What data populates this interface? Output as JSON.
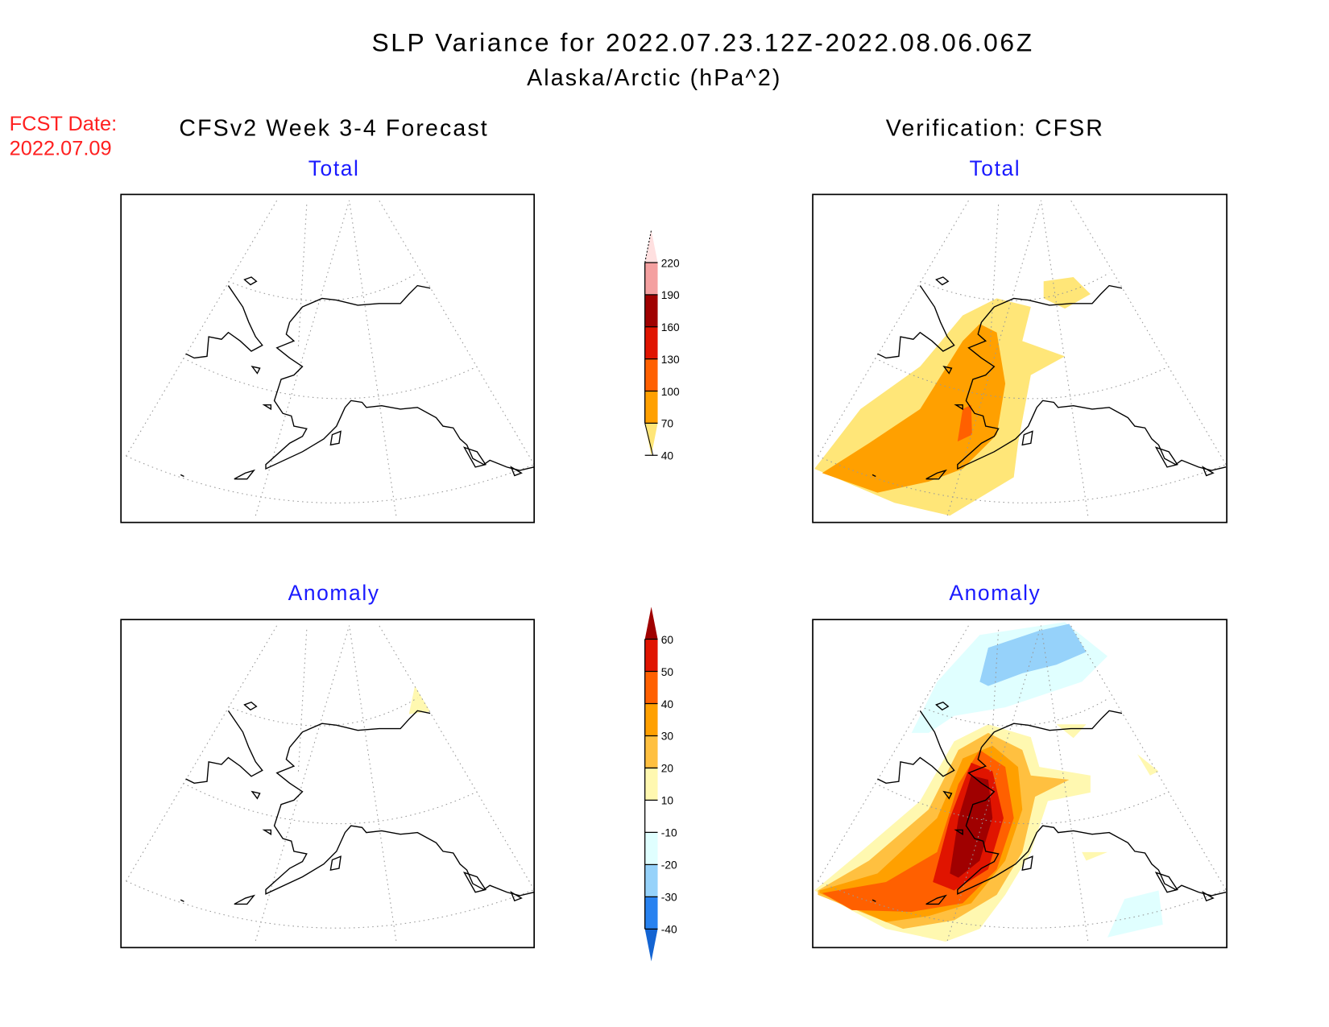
{
  "title": {
    "line1": "SLP Variance for 2022.07.23.12Z-2022.08.06.06Z",
    "line2": "Alaska/Arctic (hPa^2)"
  },
  "fcst_date": {
    "label": "FCST Date:",
    "value": "2022.07.09"
  },
  "columns": {
    "left": "CFSv2 Week 3-4 Forecast",
    "right": "Verification: CFSR"
  },
  "panels": {
    "top_left": "Total",
    "top_right": "Total",
    "bottom_left": "Anomaly",
    "bottom_right": "Anomaly"
  },
  "colorbar_total": {
    "labels": [
      "220",
      "190",
      "160",
      "130",
      "100",
      "70",
      "40"
    ],
    "colors": [
      "#ffe0e0",
      "#f4a0a0",
      "#a00000",
      "#e01400",
      "#ff6000",
      "#ffa000",
      "#ffe678"
    ]
  },
  "colorbar_anomaly": {
    "labels": [
      "60",
      "50",
      "40",
      "30",
      "20",
      "10",
      "-10",
      "-20",
      "-30",
      "-40"
    ],
    "colors": [
      "#a00000",
      "#e01400",
      "#ff6000",
      "#ffa000",
      "#ffc040",
      "#fff8b0",
      "#ffffff",
      "#e0ffff",
      "#96d2fa",
      "#2882f0",
      "#1464d2"
    ]
  }
}
